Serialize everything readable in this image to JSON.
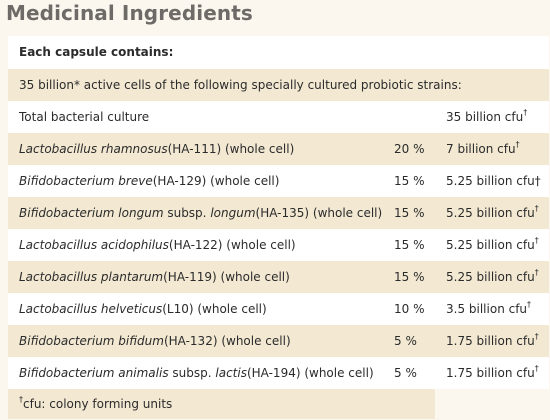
{
  "title": "Medicinal Ingredients",
  "header": {
    "capsule_label": "Each capsule contains:",
    "active_cells_text": "35 billion* active cells of the following specially cultured probiotic strains:"
  },
  "total": {
    "label": "Total bacterial culture",
    "amount": "35 billion cfu",
    "dagger": "†"
  },
  "strains": [
    {
      "species_italic": "Lactobacillus rhamnosus",
      "suffix": "(HA-111) (whole cell)",
      "percent": "20 %",
      "amount": "7 billion cfu",
      "dagger": "†"
    },
    {
      "species_italic": "Bifidobacterium breve",
      "suffix": "(HA-129) (whole cell)",
      "percent": "15 %",
      "amount": "5.25 billion cfu†",
      "dagger": ""
    },
    {
      "species_italic": "Bifidobacterium longum",
      "middle": " subsp. ",
      "species_italic2": "longum",
      "suffix": "(HA-135) (whole cell)",
      "percent": "15 %",
      "amount": "5.25 billion cfu",
      "dagger": "†"
    },
    {
      "species_italic": "Lactobacillus acidophilus",
      "suffix": "(HA-122) (whole cell)",
      "percent": "15 %",
      "amount": "5.25 billion cfu",
      "dagger": "†"
    },
    {
      "species_italic": "Lactobacillus plantarum",
      "suffix": "(HA-119) (whole cell)",
      "percent": "15 %",
      "amount": "5.25 billion cfu",
      "dagger": "†"
    },
    {
      "species_italic": "Lactobacillus helveticus",
      "suffix": "(L10) (whole cell)",
      "percent": "10 %",
      "amount": "3.5 billion cfu",
      "dagger": "†"
    },
    {
      "species_italic": "Bifidobacterium bifidum",
      "suffix": "(HA-132) (whole cell)",
      "percent": "5 %",
      "amount": "1.75 billion cfu",
      "dagger": "†"
    },
    {
      "species_italic": "Bifidobacterium animalis",
      "middle": " subsp. ",
      "species_italic2": "lactis",
      "suffix": "(HA-194) (whole cell)",
      "percent": "5 %",
      "amount": "1.75 billion cfu",
      "dagger": "†"
    }
  ],
  "footer": {
    "dagger": "†",
    "text": "cfu: colony forming units"
  },
  "colors": {
    "tan_row": "#f3e9d3",
    "white_row": "#ffffff",
    "title": "#6e6a67",
    "page_bg": "#fbf7ee"
  }
}
